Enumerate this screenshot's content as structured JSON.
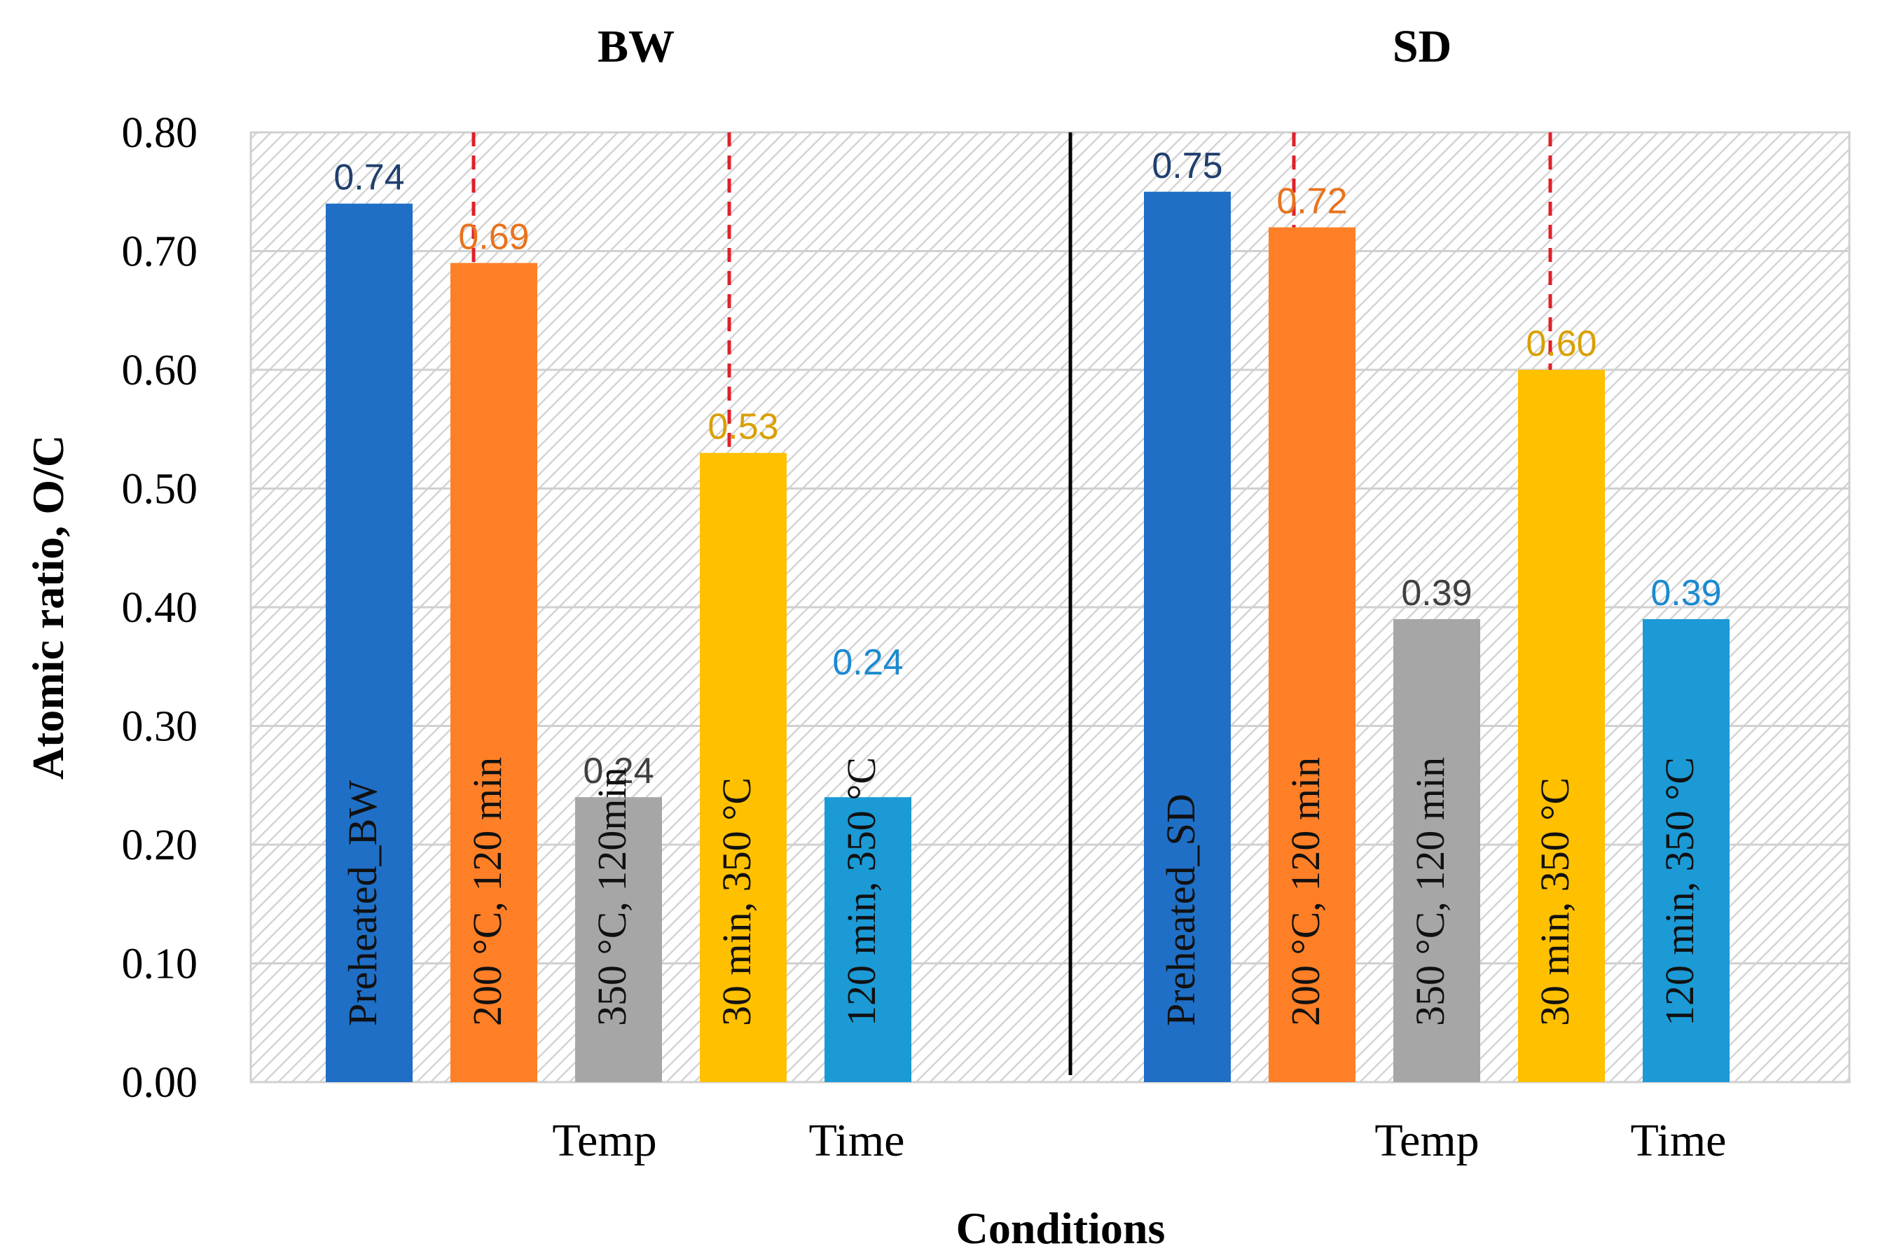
{
  "chart_data": {
    "type": "bar",
    "ylabel": "Atomic ratio, O/C",
    "xlabel": "Conditions",
    "ylim": [
      0,
      0.8
    ],
    "yticks": [
      "0.00",
      "0.10",
      "0.20",
      "0.30",
      "0.40",
      "0.50",
      "0.60",
      "0.70",
      "0.80"
    ],
    "groups": [
      {
        "title": "BW",
        "sublabels": [
          "Temp",
          "Time"
        ],
        "bars": [
          {
            "label": "Preheated_BW",
            "value": 0.74,
            "value_text": "0.74",
            "color": "#1F6FC6",
            "label_color": "#1F3F6E"
          },
          {
            "label": "200 °C, 120 min",
            "value": 0.69,
            "value_text": "0.69",
            "color": "#FF7F27",
            "label_color": "#E8731E"
          },
          {
            "label": "350 °C, 120min",
            "value": 0.24,
            "value_text": "0.24",
            "color": "#A6A6A6",
            "label_color": "#404040"
          },
          {
            "label": "30 min, 350 °C",
            "value": 0.53,
            "value_text": "0.53",
            "color": "#FFC000",
            "label_color": "#D9A000"
          },
          {
            "label": "120 min, 350 °C",
            "value": 0.24,
            "value_text": "0.24",
            "color": "#1B9AD6",
            "label_color": "#1B8AD0"
          }
        ]
      },
      {
        "title": "SD",
        "sublabels": [
          "Temp",
          "Time"
        ],
        "bars": [
          {
            "label": "Preheated_SD",
            "value": 0.75,
            "value_text": "0.75",
            "color": "#1F6FC6",
            "label_color": "#1F3F6E"
          },
          {
            "label": "200 °C, 120 min",
            "value": 0.72,
            "value_text": "0.72",
            "color": "#FF7F27",
            "label_color": "#E8731E"
          },
          {
            "label": "350 °C, 120 min",
            "value": 0.39,
            "value_text": "0.39",
            "color": "#A6A6A6",
            "label_color": "#404040"
          },
          {
            "label": "30 min, 350 °C",
            "value": 0.6,
            "value_text": "0.60",
            "color": "#FFC000",
            "label_color": "#D9A000"
          },
          {
            "label": "120 min, 350 °C",
            "value": 0.39,
            "value_text": "0.39",
            "color": "#1B9AD6",
            "label_color": "#1B8AD0"
          }
        ]
      }
    ],
    "separator_color": "#E0202A"
  }
}
